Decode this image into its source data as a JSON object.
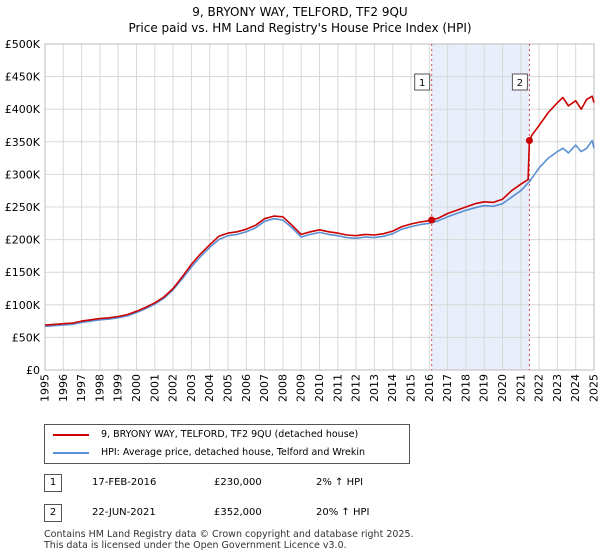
{
  "title": "9, BRYONY WAY, TELFORD, TF2 9QU",
  "subtitle": "Price paid vs. HM Land Registry's House Price Index (HPI)",
  "legend": {
    "property_label": "9, BRYONY WAY, TELFORD, TF2 9QU (detached house)",
    "hpi_label": "HPI: Average price, detached house, Telford and Wrekin"
  },
  "colors": {
    "property": "#cc0000",
    "hpi": "#5b8fd4",
    "shade": "#e8eefa",
    "grid": "#d8d8d8",
    "marker": "#cc0000"
  },
  "transactions": [
    {
      "id": "1",
      "date": "17-FEB-2016",
      "price": "£230,000",
      "hpi": "2% ↑ HPI"
    },
    {
      "id": "2",
      "date": "22-JUN-2021",
      "price": "£352,000",
      "hpi": "20% ↑ HPI"
    }
  ],
  "footer": [
    "Contains HM Land Registry data © Crown copyright and database right 2025.",
    "This data is licensed under the Open Government Licence v3.0."
  ],
  "chart_data": {
    "type": "line",
    "title": "9, BRYONY WAY, TELFORD, TF2 9QU",
    "subtitle": "Price paid vs. HM Land Registry's House Price Index (HPI)",
    "xlim": [
      1995,
      2025
    ],
    "ylim": [
      0,
      500000
    ],
    "x_ticks": [
      1995,
      1996,
      1997,
      1998,
      1999,
      2000,
      2001,
      2002,
      2003,
      2004,
      2005,
      2006,
      2007,
      2008,
      2009,
      2010,
      2011,
      2012,
      2013,
      2014,
      2015,
      2016,
      2017,
      2018,
      2019,
      2020,
      2021,
      2022,
      2023,
      2024,
      2025
    ],
    "y_ticks": [
      {
        "value": 0,
        "label": "£0"
      },
      {
        "value": 50000,
        "label": "£50K"
      },
      {
        "value": 100000,
        "label": "£100K"
      },
      {
        "value": 150000,
        "label": "£150K"
      },
      {
        "value": 200000,
        "label": "£200K"
      },
      {
        "value": 250000,
        "label": "£250K"
      },
      {
        "value": 300000,
        "label": "£300K"
      },
      {
        "value": 350000,
        "label": "£350K"
      },
      {
        "value": 400000,
        "label": "£400K"
      },
      {
        "value": 450000,
        "label": "£450K"
      },
      {
        "value": 500000,
        "label": "£500K"
      }
    ],
    "grid": true,
    "shaded_range": [
      2016.13,
      2021.47
    ],
    "events": [
      {
        "label": "1",
        "x": 2016.13,
        "y": 230000
      },
      {
        "label": "2",
        "x": 2021.47,
        "y": 352000
      }
    ],
    "series": [
      {
        "name": "9, BRYONY WAY, TELFORD, TF2 9QU (detached house)",
        "x": [
          1995,
          1995.5,
          1996,
          1996.5,
          1997,
          1997.5,
          1998,
          1998.5,
          1999,
          1999.5,
          2000,
          2000.5,
          2001,
          2001.5,
          2002,
          2002.5,
          2003,
          2003.5,
          2004,
          2004.5,
          2005,
          2005.5,
          2006,
          2006.5,
          2007,
          2007.5,
          2008,
          2008.5,
          2009,
          2009.5,
          2010,
          2010.5,
          2011,
          2011.5,
          2012,
          2012.5,
          2013,
          2013.5,
          2014,
          2014.5,
          2015,
          2015.5,
          2016,
          2016.13,
          2016.5,
          2017,
          2017.5,
          2018,
          2018.5,
          2019,
          2019.5,
          2020,
          2020.5,
          2021,
          2021.4,
          2021.47,
          2021.6,
          2022,
          2022.5,
          2023,
          2023.3,
          2023.6,
          2024,
          2024.3,
          2024.6,
          2024.9,
          2025
        ],
        "y": [
          69000,
          70000,
          71000,
          72000,
          75000,
          77000,
          79000,
          80000,
          82000,
          85000,
          90000,
          96000,
          103000,
          112000,
          125000,
          143000,
          162000,
          178000,
          192000,
          205000,
          210000,
          212000,
          216000,
          222000,
          232000,
          236000,
          235000,
          222000,
          208000,
          212000,
          215000,
          212000,
          210000,
          207000,
          206000,
          208000,
          207000,
          209000,
          213000,
          220000,
          224000,
          227000,
          229000,
          230000,
          233000,
          240000,
          245000,
          250000,
          255000,
          258000,
          257000,
          262000,
          275000,
          285000,
          292000,
          352000,
          360000,
          375000,
          395000,
          410000,
          418000,
          405000,
          413000,
          400000,
          415000,
          420000,
          410000
        ]
      },
      {
        "name": "HPI: Average price, detached house, Telford and Wrekin",
        "x": [
          1995,
          1995.5,
          1996,
          1996.5,
          1997,
          1997.5,
          1998,
          1998.5,
          1999,
          1999.5,
          2000,
          2000.5,
          2001,
          2001.5,
          2002,
          2002.5,
          2003,
          2003.5,
          2004,
          2004.5,
          2005,
          2005.5,
          2006,
          2006.5,
          2007,
          2007.5,
          2008,
          2008.5,
          2009,
          2009.5,
          2010,
          2010.5,
          2011,
          2011.5,
          2012,
          2012.5,
          2013,
          2013.5,
          2014,
          2014.5,
          2015,
          2015.5,
          2016,
          2016.5,
          2017,
          2017.5,
          2018,
          2018.5,
          2019,
          2019.5,
          2020,
          2020.5,
          2021,
          2021.5,
          2022,
          2022.5,
          2023,
          2023.3,
          2023.6,
          2024,
          2024.3,
          2024.6,
          2024.9,
          2025
        ],
        "y": [
          67000,
          68000,
          69000,
          70000,
          73000,
          75000,
          77000,
          78000,
          80000,
          83000,
          88000,
          94000,
          101000,
          110000,
          123000,
          140000,
          158000,
          174000,
          188000,
          200000,
          206000,
          208000,
          212000,
          218000,
          228000,
          232000,
          230000,
          218000,
          204000,
          208000,
          211000,
          208000,
          206000,
          203000,
          202000,
          204000,
          203000,
          205000,
          209000,
          216000,
          220000,
          223000,
          225000,
          229000,
          235000,
          240000,
          245000,
          249000,
          252000,
          251000,
          255000,
          265000,
          275000,
          290000,
          310000,
          325000,
          335000,
          340000,
          333000,
          345000,
          335000,
          340000,
          352000,
          340000
        ]
      }
    ]
  }
}
